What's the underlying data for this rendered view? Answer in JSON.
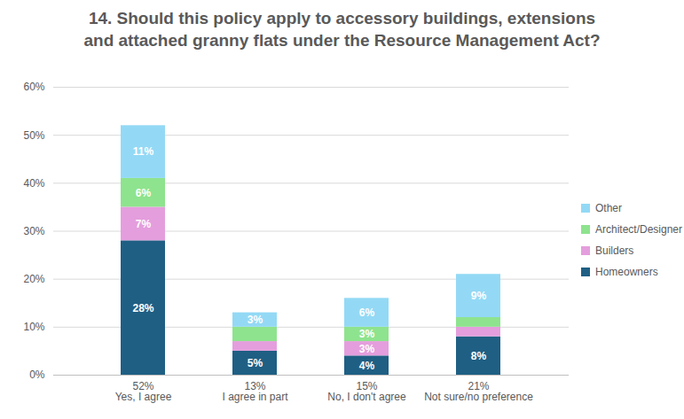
{
  "chart_data": {
    "type": "bar",
    "stacked": true,
    "data_labels": true,
    "grid": true,
    "legend": "right",
    "title": "14. Should this policy apply to accessory buildings, extensions and attached granny flats under the Resource Management Act?",
    "categories": [
      "52%\nYes, I agree",
      "13%\nI agree in part",
      "15%\nNo, I don't agree",
      "21%\nNot sure/no preference"
    ],
    "ylim": [
      0,
      60
    ],
    "yticks": [
      {
        "value": 0,
        "label": "0%"
      },
      {
        "value": 10,
        "label": "10%"
      },
      {
        "value": 20,
        "label": "20%"
      },
      {
        "value": 30,
        "label": "30%"
      },
      {
        "value": 40,
        "label": "40%"
      },
      {
        "value": 50,
        "label": "50%"
      },
      {
        "value": 60,
        "label": "60%"
      }
    ],
    "series": [
      {
        "name": "Homeowners",
        "color": "#1f5f84",
        "values": [
          28,
          5,
          4,
          8
        ],
        "value_labels": [
          "28%",
          "5%",
          "4%",
          "8%"
        ]
      },
      {
        "name": "Builders",
        "color": "#e49edd",
        "values": [
          7,
          2,
          3,
          2
        ],
        "value_labels": [
          "7%",
          null,
          "3%",
          null
        ]
      },
      {
        "name": "Architect/Designer",
        "color": "#8ee38e",
        "values": [
          6,
          3,
          3,
          2
        ],
        "value_labels": [
          "6%",
          null,
          "3%",
          null
        ]
      },
      {
        "name": "Other",
        "color": "#93d9f5",
        "values": [
          11,
          3,
          6,
          9
        ],
        "value_labels": [
          "11%",
          "3%",
          "6%",
          "9%"
        ]
      }
    ]
  }
}
